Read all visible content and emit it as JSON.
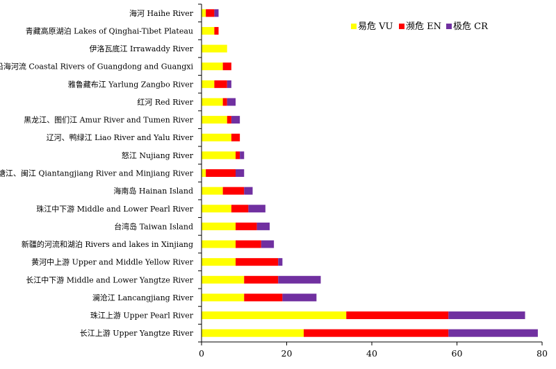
{
  "chart_data": {
    "type": "bar",
    "orientation": "horizontal",
    "stacked": true,
    "title": "",
    "xlabel": "",
    "ylabel": "",
    "xlim": [
      0,
      80
    ],
    "x_ticks": [
      "0",
      "20",
      "40",
      "60",
      "80"
    ],
    "grid": false,
    "legend_position": "top-right",
    "categories": [
      "长江上游 Upper Yangtze River",
      "珠江上游 Upper Pearl River",
      "澜沧江 Lancangjiang River",
      "长江中下游 Middle and Lower Yangtze River",
      "黄河中上游 Upper and Middle Yellow River",
      "新疆的河流和湖泊 Rivers and lakes in Xinjiang",
      "台湾岛 Taiwan Island",
      "珠江中下游 Middle and Lower Pearl River",
      "海南岛 Hainan Island",
      "钱塘江、闽江 Qiantangjiang River and Minjiang River",
      "怒江 Nujiang River",
      "辽河、鸭绿江 Liao River and Yalu River",
      "黑龙江、图们江 Amur River and Tumen River",
      "红河 Red River",
      "雅鲁藏布江 Yarlung Zangbo River",
      "两广沿海河流 Coastal Rivers of Guangdong and Guangxi",
      "伊洛瓦底江 Irrawaddy River",
      "青藏高原湖泊 Lakes of Qinghai-Tibet Plateau",
      "海河 Haihe River"
    ],
    "series": [
      {
        "name": "易危 VU",
        "color": "#ffff00",
        "values": [
          24,
          34,
          10,
          10,
          8,
          8,
          8,
          7,
          5,
          1,
          8,
          7,
          6,
          5,
          3,
          5,
          6,
          3,
          1
        ]
      },
      {
        "name": "濒危 EN",
        "color": "#ff0000",
        "values": [
          34,
          24,
          9,
          8,
          10,
          6,
          5,
          4,
          5,
          7,
          1,
          2,
          1,
          1,
          3,
          2,
          0,
          1,
          2
        ]
      },
      {
        "name": "极危 CR",
        "color": "#7030a0",
        "values": [
          21,
          18,
          8,
          10,
          1,
          3,
          3,
          4,
          2,
          2,
          1,
          0,
          2,
          2,
          1,
          0,
          0,
          0,
          1
        ]
      }
    ]
  }
}
